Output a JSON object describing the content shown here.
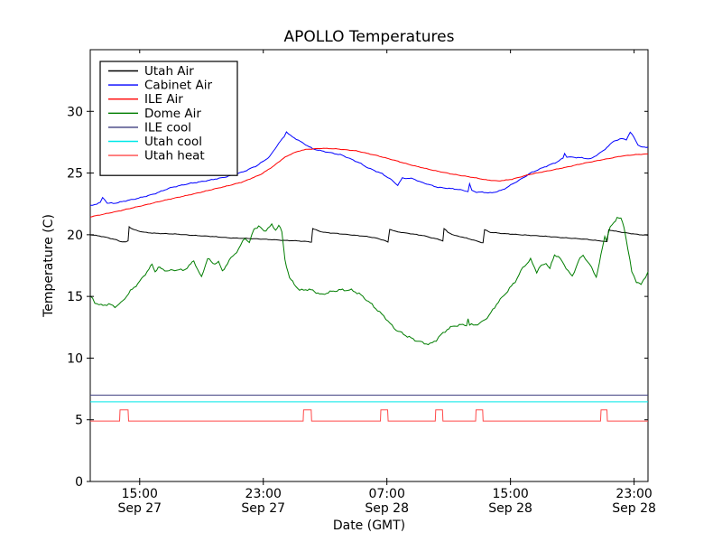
{
  "chart_data": {
    "type": "line",
    "title": "APOLLO Temperatures",
    "xlabel": "Date (GMT)",
    "ylabel": "Temperature (C)",
    "x_unit": "hours since Sep 27 00:00 GMT",
    "xlim": [
      11.8,
      47.9
    ],
    "ylim": [
      0,
      35
    ],
    "grid": false,
    "legend_position": "upper left",
    "x_ticks": [
      {
        "t": 15,
        "time": "15:00",
        "date": "Sep 27"
      },
      {
        "t": 23,
        "time": "23:00",
        "date": "Sep 27"
      },
      {
        "t": 31,
        "time": "07:00",
        "date": "Sep 28"
      },
      {
        "t": 39,
        "time": "15:00",
        "date": "Sep 28"
      },
      {
        "t": 47,
        "time": "23:00",
        "date": "Sep 28"
      }
    ],
    "y_ticks": [
      0,
      5,
      10,
      15,
      20,
      25,
      30
    ],
    "series": [
      {
        "name": "Utah Air",
        "color": "#000000",
        "noise": 0.03,
        "points": [
          [
            11.8,
            20.0
          ],
          [
            12.4,
            19.9
          ],
          [
            13.0,
            19.75
          ],
          [
            13.45,
            19.6
          ],
          [
            13.75,
            19.45
          ],
          [
            14.1,
            19.4
          ],
          [
            14.25,
            19.5
          ],
          [
            14.32,
            20.65
          ],
          [
            14.55,
            20.45
          ],
          [
            14.9,
            20.3
          ],
          [
            15.3,
            20.2
          ],
          [
            16.2,
            20.1
          ],
          [
            17.4,
            20.05
          ],
          [
            18.5,
            19.95
          ],
          [
            19.7,
            19.85
          ],
          [
            20.8,
            19.75
          ],
          [
            22.0,
            19.7
          ],
          [
            23.2,
            19.62
          ],
          [
            24.3,
            19.55
          ],
          [
            25.2,
            19.5
          ],
          [
            25.8,
            19.45
          ],
          [
            26.12,
            19.4
          ],
          [
            26.2,
            20.5
          ],
          [
            26.5,
            20.35
          ],
          [
            26.9,
            20.2
          ],
          [
            27.8,
            20.1
          ],
          [
            29.0,
            19.95
          ],
          [
            29.8,
            19.85
          ],
          [
            30.4,
            19.7
          ],
          [
            30.9,
            19.5
          ],
          [
            31.07,
            19.4
          ],
          [
            31.18,
            20.45
          ],
          [
            31.6,
            20.25
          ],
          [
            32.4,
            20.1
          ],
          [
            33.3,
            19.95
          ],
          [
            33.9,
            19.75
          ],
          [
            34.4,
            19.6
          ],
          [
            34.62,
            19.5
          ],
          [
            34.7,
            20.5
          ],
          [
            34.95,
            20.2
          ],
          [
            35.35,
            19.95
          ],
          [
            35.9,
            19.8
          ],
          [
            36.5,
            19.6
          ],
          [
            37.0,
            19.42
          ],
          [
            37.22,
            19.35
          ],
          [
            37.32,
            20.4
          ],
          [
            37.7,
            20.2
          ],
          [
            38.5,
            20.1
          ],
          [
            39.7,
            20.0
          ],
          [
            40.9,
            19.9
          ],
          [
            42.0,
            19.8
          ],
          [
            43.2,
            19.7
          ],
          [
            44.1,
            19.6
          ],
          [
            44.85,
            19.5
          ],
          [
            45.25,
            19.42
          ],
          [
            45.36,
            20.4
          ],
          [
            45.7,
            20.3
          ],
          [
            46.2,
            20.2
          ],
          [
            46.8,
            20.1
          ],
          [
            47.35,
            20.0
          ],
          [
            47.9,
            19.95
          ]
        ]
      },
      {
        "name": "Cabinet Air",
        "color": "#0000ff",
        "noise": 0.05,
        "points": [
          [
            11.8,
            22.35
          ],
          [
            12.1,
            22.45
          ],
          [
            12.45,
            22.6
          ],
          [
            12.6,
            23.0
          ],
          [
            12.75,
            22.85
          ],
          [
            12.9,
            22.55
          ],
          [
            13.3,
            22.55
          ],
          [
            13.6,
            22.6
          ],
          [
            14.7,
            22.9
          ],
          [
            15.9,
            23.3
          ],
          [
            17.0,
            23.8
          ],
          [
            18.2,
            24.15
          ],
          [
            19.4,
            24.4
          ],
          [
            20.5,
            24.65
          ],
          [
            21.7,
            25.1
          ],
          [
            22.6,
            25.6
          ],
          [
            23.4,
            26.3
          ],
          [
            24.0,
            27.4
          ],
          [
            24.35,
            27.95
          ],
          [
            24.5,
            28.35
          ],
          [
            24.75,
            28.05
          ],
          [
            25.4,
            27.55
          ],
          [
            26.2,
            26.95
          ],
          [
            26.9,
            26.75
          ],
          [
            28.1,
            26.45
          ],
          [
            29.2,
            25.85
          ],
          [
            29.8,
            25.4
          ],
          [
            30.7,
            24.95
          ],
          [
            31.3,
            24.45
          ],
          [
            31.7,
            24.0
          ],
          [
            32.0,
            24.6
          ],
          [
            32.7,
            24.55
          ],
          [
            33.1,
            24.3
          ],
          [
            34.3,
            23.85
          ],
          [
            35.5,
            23.7
          ],
          [
            36.25,
            23.5
          ],
          [
            36.35,
            24.1
          ],
          [
            36.5,
            23.6
          ],
          [
            36.8,
            23.45
          ],
          [
            37.8,
            23.4
          ],
          [
            38.5,
            23.65
          ],
          [
            39.4,
            24.3
          ],
          [
            40.3,
            25.0
          ],
          [
            41.2,
            25.5
          ],
          [
            42.0,
            25.9
          ],
          [
            42.4,
            26.2
          ],
          [
            42.5,
            26.6
          ],
          [
            42.65,
            26.3
          ],
          [
            43.5,
            26.25
          ],
          [
            44.2,
            26.15
          ],
          [
            45.0,
            26.8
          ],
          [
            45.7,
            27.6
          ],
          [
            46.2,
            27.8
          ],
          [
            46.5,
            27.7
          ],
          [
            46.75,
            28.3
          ],
          [
            47.0,
            27.9
          ],
          [
            47.25,
            27.3
          ],
          [
            47.45,
            27.1
          ],
          [
            47.9,
            27.1
          ]
        ]
      },
      {
        "name": "ILE Air",
        "color": "#ff0000",
        "noise": 0.03,
        "points": [
          [
            11.8,
            21.45
          ],
          [
            13.55,
            21.9
          ],
          [
            15.3,
            22.4
          ],
          [
            17.0,
            22.9
          ],
          [
            18.8,
            23.4
          ],
          [
            20.5,
            23.9
          ],
          [
            21.7,
            24.3
          ],
          [
            22.85,
            24.9
          ],
          [
            23.7,
            25.6
          ],
          [
            24.3,
            26.2
          ],
          [
            24.9,
            26.6
          ],
          [
            25.5,
            26.85
          ],
          [
            26.0,
            26.95
          ],
          [
            26.9,
            27.0
          ],
          [
            27.8,
            26.95
          ],
          [
            29.0,
            26.8
          ],
          [
            30.4,
            26.4
          ],
          [
            31.6,
            26.0
          ],
          [
            32.7,
            25.6
          ],
          [
            33.9,
            25.25
          ],
          [
            35.1,
            24.95
          ],
          [
            36.3,
            24.7
          ],
          [
            37.4,
            24.45
          ],
          [
            38.2,
            24.35
          ],
          [
            39.1,
            24.5
          ],
          [
            40.3,
            24.9
          ],
          [
            41.5,
            25.2
          ],
          [
            42.7,
            25.5
          ],
          [
            43.8,
            25.8
          ],
          [
            45.0,
            26.1
          ],
          [
            46.1,
            26.35
          ],
          [
            47.1,
            26.5
          ],
          [
            47.9,
            26.55
          ]
        ]
      },
      {
        "name": "Dome Air",
        "color": "#007d00",
        "noise": 0.13,
        "points": [
          [
            11.8,
            15.0
          ],
          [
            12.1,
            14.55
          ],
          [
            12.5,
            14.25
          ],
          [
            13.0,
            14.35
          ],
          [
            13.4,
            14.2
          ],
          [
            13.8,
            14.45
          ],
          [
            14.4,
            15.4
          ],
          [
            15.0,
            16.2
          ],
          [
            15.6,
            17.25
          ],
          [
            15.8,
            17.55
          ],
          [
            16.0,
            17.0
          ],
          [
            16.2,
            17.4
          ],
          [
            16.5,
            17.15
          ],
          [
            16.9,
            17.1
          ],
          [
            17.4,
            17.15
          ],
          [
            17.8,
            17.1
          ],
          [
            18.2,
            17.5
          ],
          [
            18.5,
            17.9
          ],
          [
            19.0,
            16.55
          ],
          [
            19.4,
            18.1
          ],
          [
            19.75,
            17.6
          ],
          [
            20.1,
            17.8
          ],
          [
            20.35,
            17.0
          ],
          [
            20.8,
            17.9
          ],
          [
            21.4,
            18.8
          ],
          [
            21.8,
            19.8
          ],
          [
            22.1,
            19.35
          ],
          [
            22.4,
            20.5
          ],
          [
            22.7,
            20.7
          ],
          [
            23.05,
            20.3
          ],
          [
            23.3,
            20.55
          ],
          [
            23.55,
            20.8
          ],
          [
            23.8,
            20.4
          ],
          [
            24.0,
            20.8
          ],
          [
            24.2,
            20.2
          ],
          [
            24.4,
            18.0
          ],
          [
            24.7,
            16.5
          ],
          [
            25.0,
            16.0
          ],
          [
            25.35,
            15.45
          ],
          [
            25.75,
            15.6
          ],
          [
            26.2,
            15.5
          ],
          [
            26.75,
            15.1
          ],
          [
            27.2,
            15.3
          ],
          [
            27.9,
            15.5
          ],
          [
            28.7,
            15.5
          ],
          [
            29.2,
            15.2
          ],
          [
            29.8,
            14.6
          ],
          [
            30.4,
            13.9
          ],
          [
            30.8,
            13.4
          ],
          [
            31.2,
            12.8
          ],
          [
            31.6,
            12.3
          ],
          [
            32.2,
            11.85
          ],
          [
            32.7,
            11.5
          ],
          [
            33.3,
            11.25
          ],
          [
            33.8,
            11.15
          ],
          [
            34.2,
            11.45
          ],
          [
            34.5,
            11.9
          ],
          [
            34.9,
            12.3
          ],
          [
            35.35,
            12.6
          ],
          [
            35.8,
            12.7
          ],
          [
            36.15,
            12.7
          ],
          [
            36.25,
            13.2
          ],
          [
            36.35,
            12.7
          ],
          [
            37.0,
            12.75
          ],
          [
            37.6,
            13.4
          ],
          [
            38.1,
            14.4
          ],
          [
            38.7,
            15.3
          ],
          [
            39.3,
            16.2
          ],
          [
            39.8,
            17.3
          ],
          [
            40.3,
            18.0
          ],
          [
            40.7,
            17.0
          ],
          [
            41.0,
            17.5
          ],
          [
            41.3,
            17.7
          ],
          [
            41.55,
            17.2
          ],
          [
            41.85,
            18.4
          ],
          [
            42.1,
            18.25
          ],
          [
            42.6,
            17.3
          ],
          [
            43.0,
            16.6
          ],
          [
            43.4,
            17.9
          ],
          [
            43.7,
            18.35
          ],
          [
            44.0,
            17.8
          ],
          [
            44.25,
            17.3
          ],
          [
            44.55,
            16.6
          ],
          [
            44.85,
            18.3
          ],
          [
            45.1,
            19.9
          ],
          [
            45.2,
            19.6
          ],
          [
            45.45,
            20.6
          ],
          [
            45.7,
            21.0
          ],
          [
            45.9,
            21.45
          ],
          [
            46.15,
            21.3
          ],
          [
            46.35,
            20.6
          ],
          [
            46.6,
            18.9
          ],
          [
            46.85,
            17.0
          ],
          [
            47.15,
            16.2
          ],
          [
            47.45,
            15.95
          ],
          [
            47.75,
            16.6
          ],
          [
            47.9,
            17.0
          ]
        ]
      },
      {
        "name": "ILE cool",
        "color": "#3f3f7f",
        "noise": 0,
        "points": [
          [
            11.8,
            7.0
          ],
          [
            47.9,
            7.0
          ]
        ]
      },
      {
        "name": "Utah cool",
        "color": "#00e8e8",
        "noise": 0,
        "points": [
          [
            11.8,
            6.45
          ],
          [
            47.9,
            6.45
          ]
        ]
      },
      {
        "name": "Utah heat",
        "color": "#ff4a4a",
        "noise": 0,
        "points": [
          [
            11.8,
            4.9
          ],
          [
            13.7,
            4.9
          ],
          [
            13.73,
            5.8
          ],
          [
            14.25,
            5.8
          ],
          [
            14.28,
            4.9
          ],
          [
            25.58,
            4.9
          ],
          [
            25.61,
            5.8
          ],
          [
            26.1,
            5.8
          ],
          [
            26.13,
            4.9
          ],
          [
            30.58,
            4.9
          ],
          [
            30.61,
            5.8
          ],
          [
            31.05,
            5.8
          ],
          [
            31.08,
            4.9
          ],
          [
            34.13,
            4.9
          ],
          [
            34.16,
            5.8
          ],
          [
            34.6,
            5.8
          ],
          [
            34.63,
            4.9
          ],
          [
            36.74,
            4.9
          ],
          [
            36.77,
            5.8
          ],
          [
            37.2,
            5.8
          ],
          [
            37.23,
            4.9
          ],
          [
            44.83,
            4.9
          ],
          [
            44.86,
            5.8
          ],
          [
            45.24,
            5.8
          ],
          [
            45.27,
            4.9
          ],
          [
            47.9,
            4.9
          ]
        ]
      }
    ]
  }
}
